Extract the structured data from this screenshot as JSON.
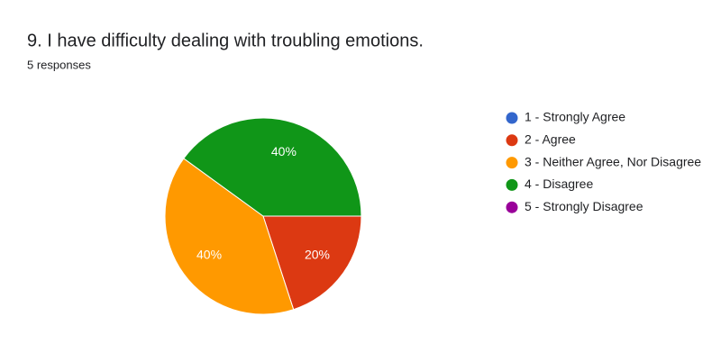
{
  "chart_data": {
    "type": "pie",
    "title": "9. I have difficulty dealing with troubling emotions.",
    "subtitle": "5 responses",
    "categories": [
      "1 - Strongly Agree",
      "2 - Agree",
      "3 - Neither Agree, Nor Disagree",
      "4 - Disagree",
      "5 - Strongly Disagree"
    ],
    "values": [
      0,
      20,
      40,
      40,
      0
    ],
    "value_labels": [
      null,
      "20%",
      "40%",
      "40%",
      null
    ],
    "colors": [
      "#3366cc",
      "#dc3912",
      "#ff9900",
      "#109618",
      "#990099"
    ],
    "legend": "right"
  }
}
